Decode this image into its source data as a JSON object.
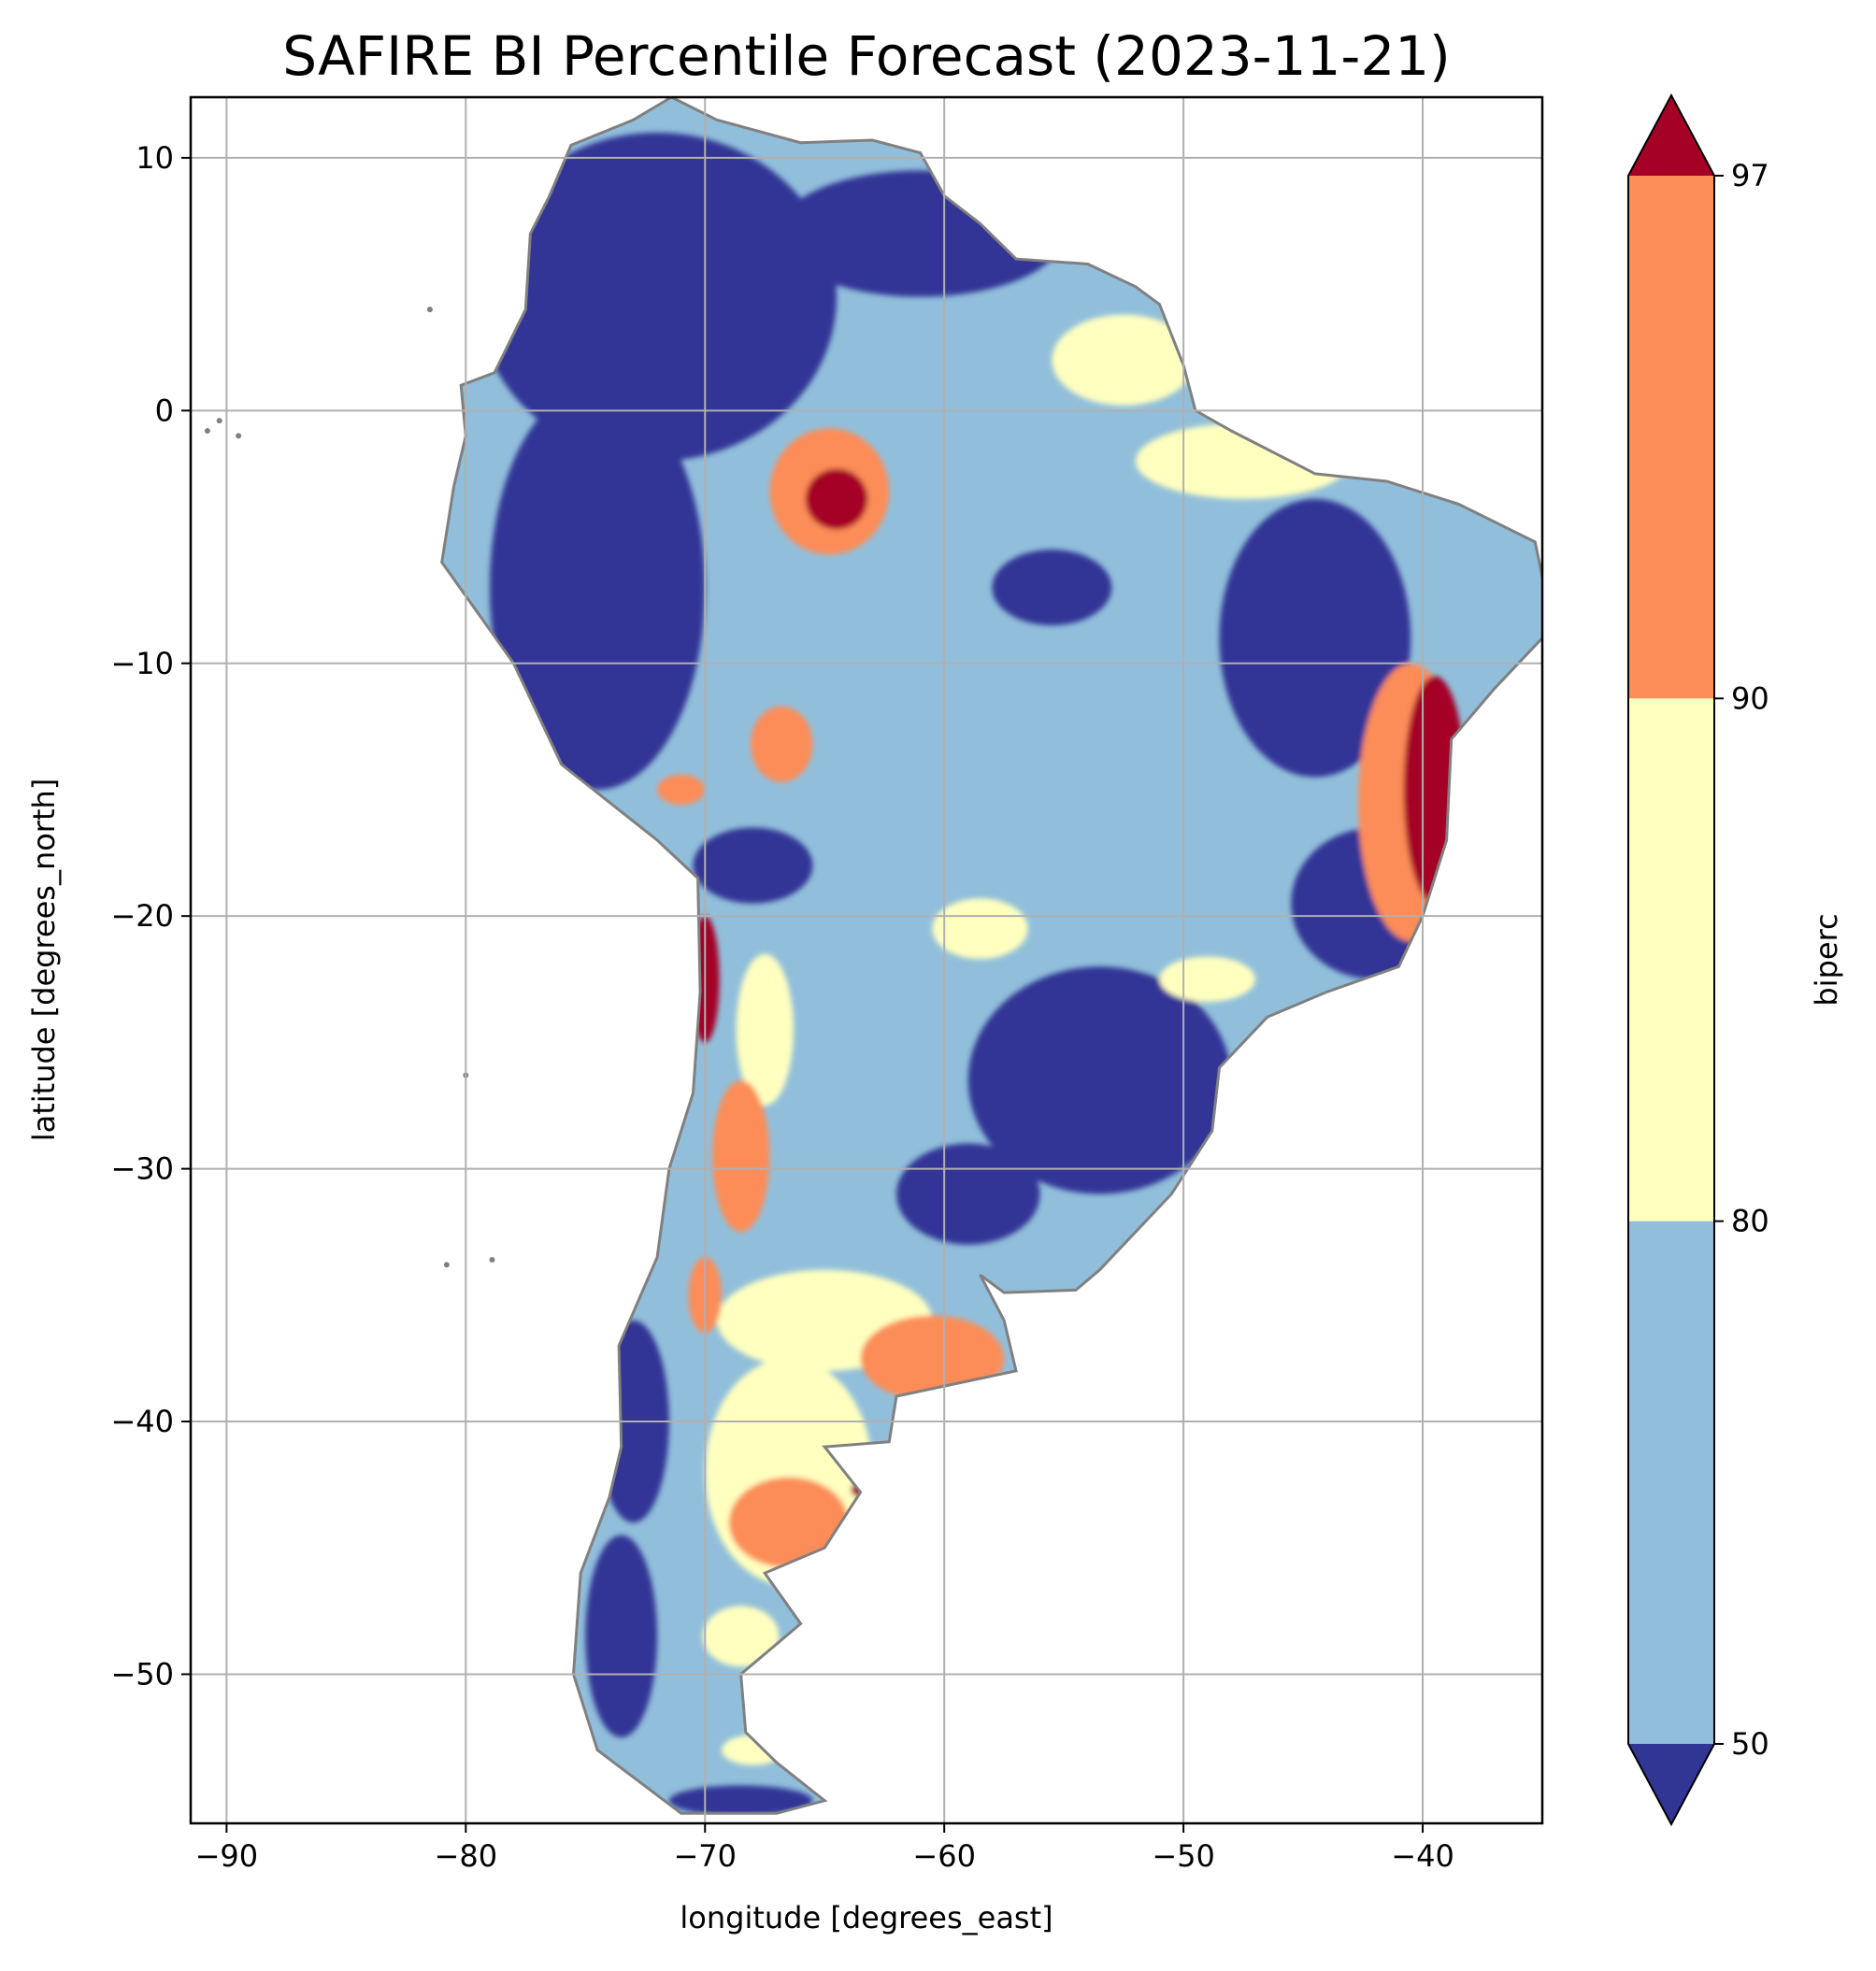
{
  "chart_data": {
    "type": "map",
    "title": "SAFIRE BI Percentile Forecast (2023-11-21)",
    "xlabel": "longitude [degrees_east]",
    "ylabel": "latitude [degrees_north]",
    "xlim": [
      -91.5,
      -35.0
    ],
    "ylim": [
      -55.9,
      12.4
    ],
    "xticks": [
      -90,
      -80,
      -70,
      -60,
      -50,
      -40
    ],
    "yticks": [
      10,
      0,
      -10,
      -20,
      -30,
      -40,
      -50
    ],
    "grid": true,
    "colorbar": {
      "label": "biperc",
      "ticks": [
        50,
        80,
        90,
        97
      ],
      "extend": "both",
      "bins": [
        {
          "range": "<50",
          "color": "#313695"
        },
        {
          "range": "50-80",
          "color": "#91bfdb"
        },
        {
          "range": "80-90",
          "color": "#ffffbf"
        },
        {
          "range": "90-97",
          "color": "#fc8d59"
        },
        {
          "range": ">97",
          "color": "#a50026"
        }
      ]
    },
    "land_outline": [
      [
        -71.4,
        12.4
      ],
      [
        -69.5,
        11.5
      ],
      [
        -66.0,
        10.6
      ],
      [
        -63.0,
        10.7
      ],
      [
        -61.0,
        10.2
      ],
      [
        -60.0,
        8.5
      ],
      [
        -58.5,
        7.4
      ],
      [
        -57.0,
        6.0
      ],
      [
        -54.0,
        5.8
      ],
      [
        -52.0,
        4.9
      ],
      [
        -51.0,
        4.2
      ],
      [
        -50.0,
        1.8
      ],
      [
        -49.5,
        0.0
      ],
      [
        -48.0,
        -0.8
      ],
      [
        -44.5,
        -2.5
      ],
      [
        -41.5,
        -2.8
      ],
      [
        -38.5,
        -3.7
      ],
      [
        -35.3,
        -5.2
      ],
      [
        -34.8,
        -7.5
      ],
      [
        -35.0,
        -9.0
      ],
      [
        -37.0,
        -11.0
      ],
      [
        -38.8,
        -13.0
      ],
      [
        -39.0,
        -17.0
      ],
      [
        -40.0,
        -20.0
      ],
      [
        -41.0,
        -22.0
      ],
      [
        -44.0,
        -23.0
      ],
      [
        -46.5,
        -24.0
      ],
      [
        -48.5,
        -26.0
      ],
      [
        -48.8,
        -28.5
      ],
      [
        -50.5,
        -31.0
      ],
      [
        -52.5,
        -33.0
      ],
      [
        -53.5,
        -34.0
      ],
      [
        -54.5,
        -34.8
      ],
      [
        -57.5,
        -34.9
      ],
      [
        -58.5,
        -34.2
      ],
      [
        -57.5,
        -36.0
      ],
      [
        -57.0,
        -38.0
      ],
      [
        -62.0,
        -39.0
      ],
      [
        -62.3,
        -40.8
      ],
      [
        -65.0,
        -41.0
      ],
      [
        -63.5,
        -42.8
      ],
      [
        -65.0,
        -45.0
      ],
      [
        -67.5,
        -46.0
      ],
      [
        -66.0,
        -48.0
      ],
      [
        -68.5,
        -50.0
      ],
      [
        -68.3,
        -52.3
      ],
      [
        -67.0,
        -53.5
      ],
      [
        -65.0,
        -55.0
      ],
      [
        -67.0,
        -55.5
      ],
      [
        -71.0,
        -55.5
      ],
      [
        -74.5,
        -53.0
      ],
      [
        -75.5,
        -50.0
      ],
      [
        -75.2,
        -46.0
      ],
      [
        -74.0,
        -43.0
      ],
      [
        -73.5,
        -41.0
      ],
      [
        -73.6,
        -37.0
      ],
      [
        -72.0,
        -33.5
      ],
      [
        -71.5,
        -30.0
      ],
      [
        -70.5,
        -27.0
      ],
      [
        -70.2,
        -23.0
      ],
      [
        -70.3,
        -18.5
      ],
      [
        -72.0,
        -17.0
      ],
      [
        -76.0,
        -14.0
      ],
      [
        -78.0,
        -10.0
      ],
      [
        -81.0,
        -6.0
      ],
      [
        -80.5,
        -3.0
      ],
      [
        -80.0,
        -1.0
      ],
      [
        -80.2,
        1.0
      ],
      [
        -78.8,
        1.5
      ],
      [
        -77.5,
        4.0
      ],
      [
        -77.3,
        7.0
      ],
      [
        -76.5,
        8.5
      ],
      [
        -75.6,
        10.5
      ],
      [
        -73.0,
        11.5
      ],
      [
        -71.4,
        12.4
      ]
    ],
    "regions_gt97": [
      {
        "lon": -39.5,
        "lat": -15.0,
        "rlon": 1.3,
        "rlat": 4.5
      },
      {
        "lon": -64.5,
        "lat": -3.5,
        "rlon": 1.3,
        "rlat": 1.2
      },
      {
        "lon": -70.0,
        "lat": -22.5,
        "rlon": 0.6,
        "rlat": 2.5
      },
      {
        "lon": -63.5,
        "lat": -42.7,
        "rlon": 0.4,
        "rlat": 0.3
      }
    ],
    "regions_90_97": [
      {
        "lon": -40.5,
        "lat": -15.5,
        "rlon": 2.2,
        "rlat": 5.5
      },
      {
        "lon": -64.8,
        "lat": -3.2,
        "rlon": 2.5,
        "rlat": 2.5
      },
      {
        "lon": -66.8,
        "lat": -13.2,
        "rlon": 1.3,
        "rlat": 1.5
      },
      {
        "lon": -60.5,
        "lat": -37.5,
        "rlon": 3.0,
        "rlat": 1.7
      },
      {
        "lon": -66.5,
        "lat": -44.0,
        "rlon": 2.5,
        "rlat": 1.8
      },
      {
        "lon": -68.5,
        "lat": -29.5,
        "rlon": 1.2,
        "rlat": 3.0
      },
      {
        "lon": -70.0,
        "lat": -35.0,
        "rlon": 0.7,
        "rlat": 1.5
      },
      {
        "lon": -71.0,
        "lat": -15.0,
        "rlon": 1.0,
        "rlat": 0.6
      }
    ],
    "regions_80_90": [
      {
        "lon": -47.5,
        "lat": -2.0,
        "rlon": 4.5,
        "rlat": 1.5
      },
      {
        "lon": -52.5,
        "lat": 2.0,
        "rlon": 3.0,
        "rlat": 1.8
      },
      {
        "lon": -65.0,
        "lat": -36.0,
        "rlon": 4.5,
        "rlat": 2.0
      },
      {
        "lon": -66.5,
        "lat": -42.0,
        "rlon": 3.5,
        "rlat": 4.5
      },
      {
        "lon": -49.0,
        "lat": -22.5,
        "rlon": 2.0,
        "rlat": 0.9
      },
      {
        "lon": -58.5,
        "lat": -20.5,
        "rlon": 2.0,
        "rlat": 1.2
      },
      {
        "lon": -67.5,
        "lat": -24.5,
        "rlon": 1.2,
        "rlat": 3.0
      },
      {
        "lon": -68.5,
        "lat": -48.5,
        "rlon": 1.6,
        "rlat": 1.2
      },
      {
        "lon": -68.0,
        "lat": -53.0,
        "rlon": 1.3,
        "rlat": 0.6
      }
    ],
    "regions_lt50": [
      {
        "lon": -72.0,
        "lat": 4.5,
        "rlon": 7.5,
        "rlat": 6.5
      },
      {
        "lon": -74.5,
        "lat": -7.0,
        "rlon": 4.5,
        "rlat": 8.0
      },
      {
        "lon": -61.0,
        "lat": 7.0,
        "rlon": 6.0,
        "rlat": 2.5
      },
      {
        "lon": -55.5,
        "lat": -7.0,
        "rlon": 2.5,
        "rlat": 1.5
      },
      {
        "lon": -44.5,
        "lat": -9.0,
        "rlon": 4.0,
        "rlat": 5.5
      },
      {
        "lon": -42.0,
        "lat": -19.5,
        "rlon": 3.5,
        "rlat": 3.0
      },
      {
        "lon": -53.5,
        "lat": -26.5,
        "rlon": 5.5,
        "rlat": 4.5
      },
      {
        "lon": -59.0,
        "lat": -31.0,
        "rlon": 3.0,
        "rlat": 2.0
      },
      {
        "lon": -68.0,
        "lat": -18.0,
        "rlon": 2.5,
        "rlat": 1.5
      },
      {
        "lon": -73.0,
        "lat": -40.0,
        "rlon": 1.5,
        "rlat": 4.0
      },
      {
        "lon": -73.5,
        "lat": -48.5,
        "rlon": 1.5,
        "rlat": 4.0
      },
      {
        "lon": -68.5,
        "lat": -55.0,
        "rlon": 3.0,
        "rlat": 0.6
      }
    ],
    "islands": [
      [
        -90.8,
        -0.8
      ],
      [
        -90.3,
        -0.4
      ],
      [
        -89.5,
        -1.0
      ],
      [
        -81.5,
        4.0
      ],
      [
        -80.0,
        -26.3
      ],
      [
        -78.9,
        -33.6
      ],
      [
        -80.8,
        -33.8
      ]
    ]
  }
}
